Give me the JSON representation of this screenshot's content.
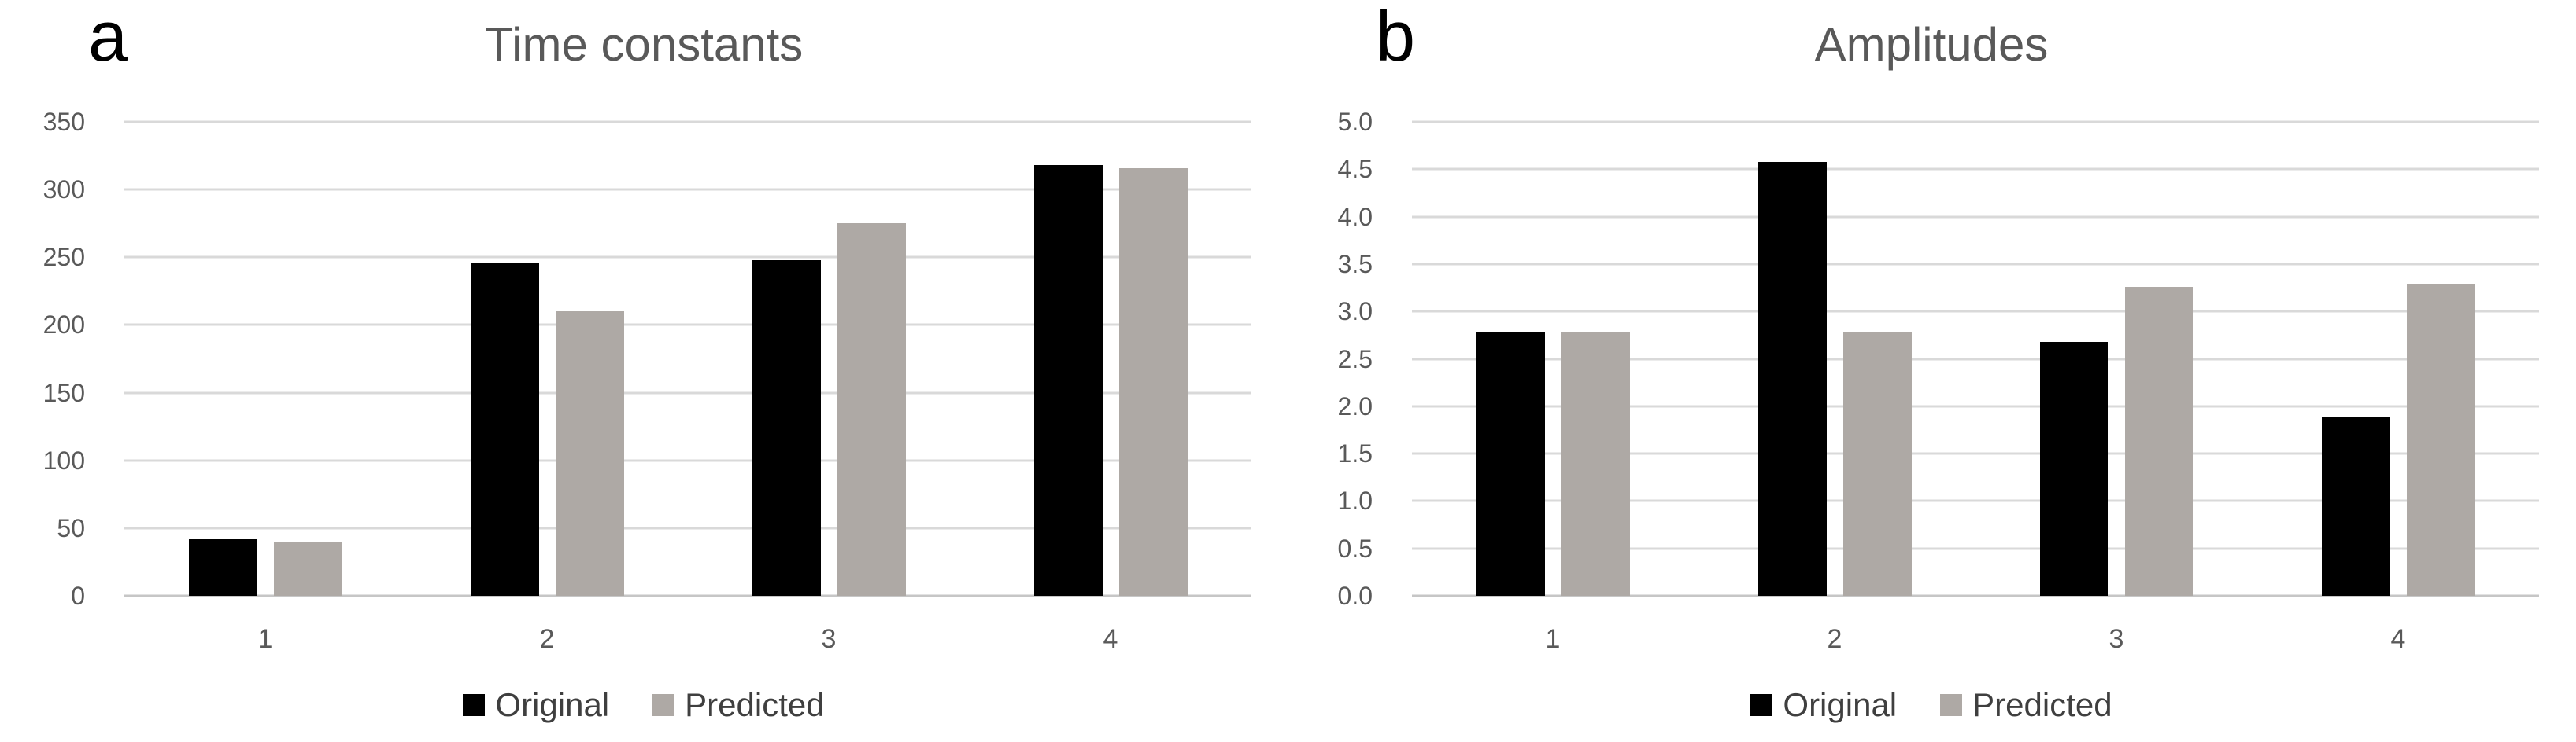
{
  "figure": {
    "background": "#ffffff",
    "gridline_color": "#d9d9d9",
    "baseline_color": "#c6c6c6",
    "axis_text_color": "#595959",
    "title_color": "#595959",
    "legend_text_color": "#3f3f3f",
    "series_colors": {
      "original": "#000000",
      "predicted": "#aea9a5"
    }
  },
  "chart_data": [
    {
      "type": "bar",
      "panel_label": "a",
      "title": "Time constants",
      "categories": [
        "1",
        "2",
        "3",
        "4"
      ],
      "series": [
        {
          "name": "Original",
          "color_key": "original",
          "values": [
            42,
            246,
            248,
            318
          ]
        },
        {
          "name": "Predicted",
          "color_key": "predicted",
          "values": [
            40,
            210,
            275,
            316
          ]
        }
      ],
      "ylim": [
        0,
        350
      ],
      "y_ticks": [
        "350",
        "300",
        "250",
        "200",
        "150",
        "100",
        "50",
        "0"
      ],
      "grid": "horizontal",
      "legend_position": "bottom",
      "legend": [
        "Original",
        "Predicted"
      ]
    },
    {
      "type": "bar",
      "panel_label": "b",
      "title": "Amplitudes",
      "categories": [
        "1",
        "2",
        "3",
        "4"
      ],
      "series": [
        {
          "name": "Original",
          "color_key": "original",
          "values": [
            2.78,
            4.58,
            2.68,
            1.88
          ]
        },
        {
          "name": "Predicted",
          "color_key": "predicted",
          "values": [
            2.78,
            2.78,
            3.26,
            3.29
          ]
        }
      ],
      "ylim": [
        0,
        5
      ],
      "y_ticks": [
        "5.0",
        "4.5",
        "4.0",
        "3.5",
        "3.0",
        "2.5",
        "2.0",
        "1.5",
        "1.0",
        "0.5",
        "0.0"
      ],
      "grid": "horizontal",
      "legend_position": "bottom",
      "legend": [
        "Original",
        "Predicted"
      ]
    }
  ]
}
